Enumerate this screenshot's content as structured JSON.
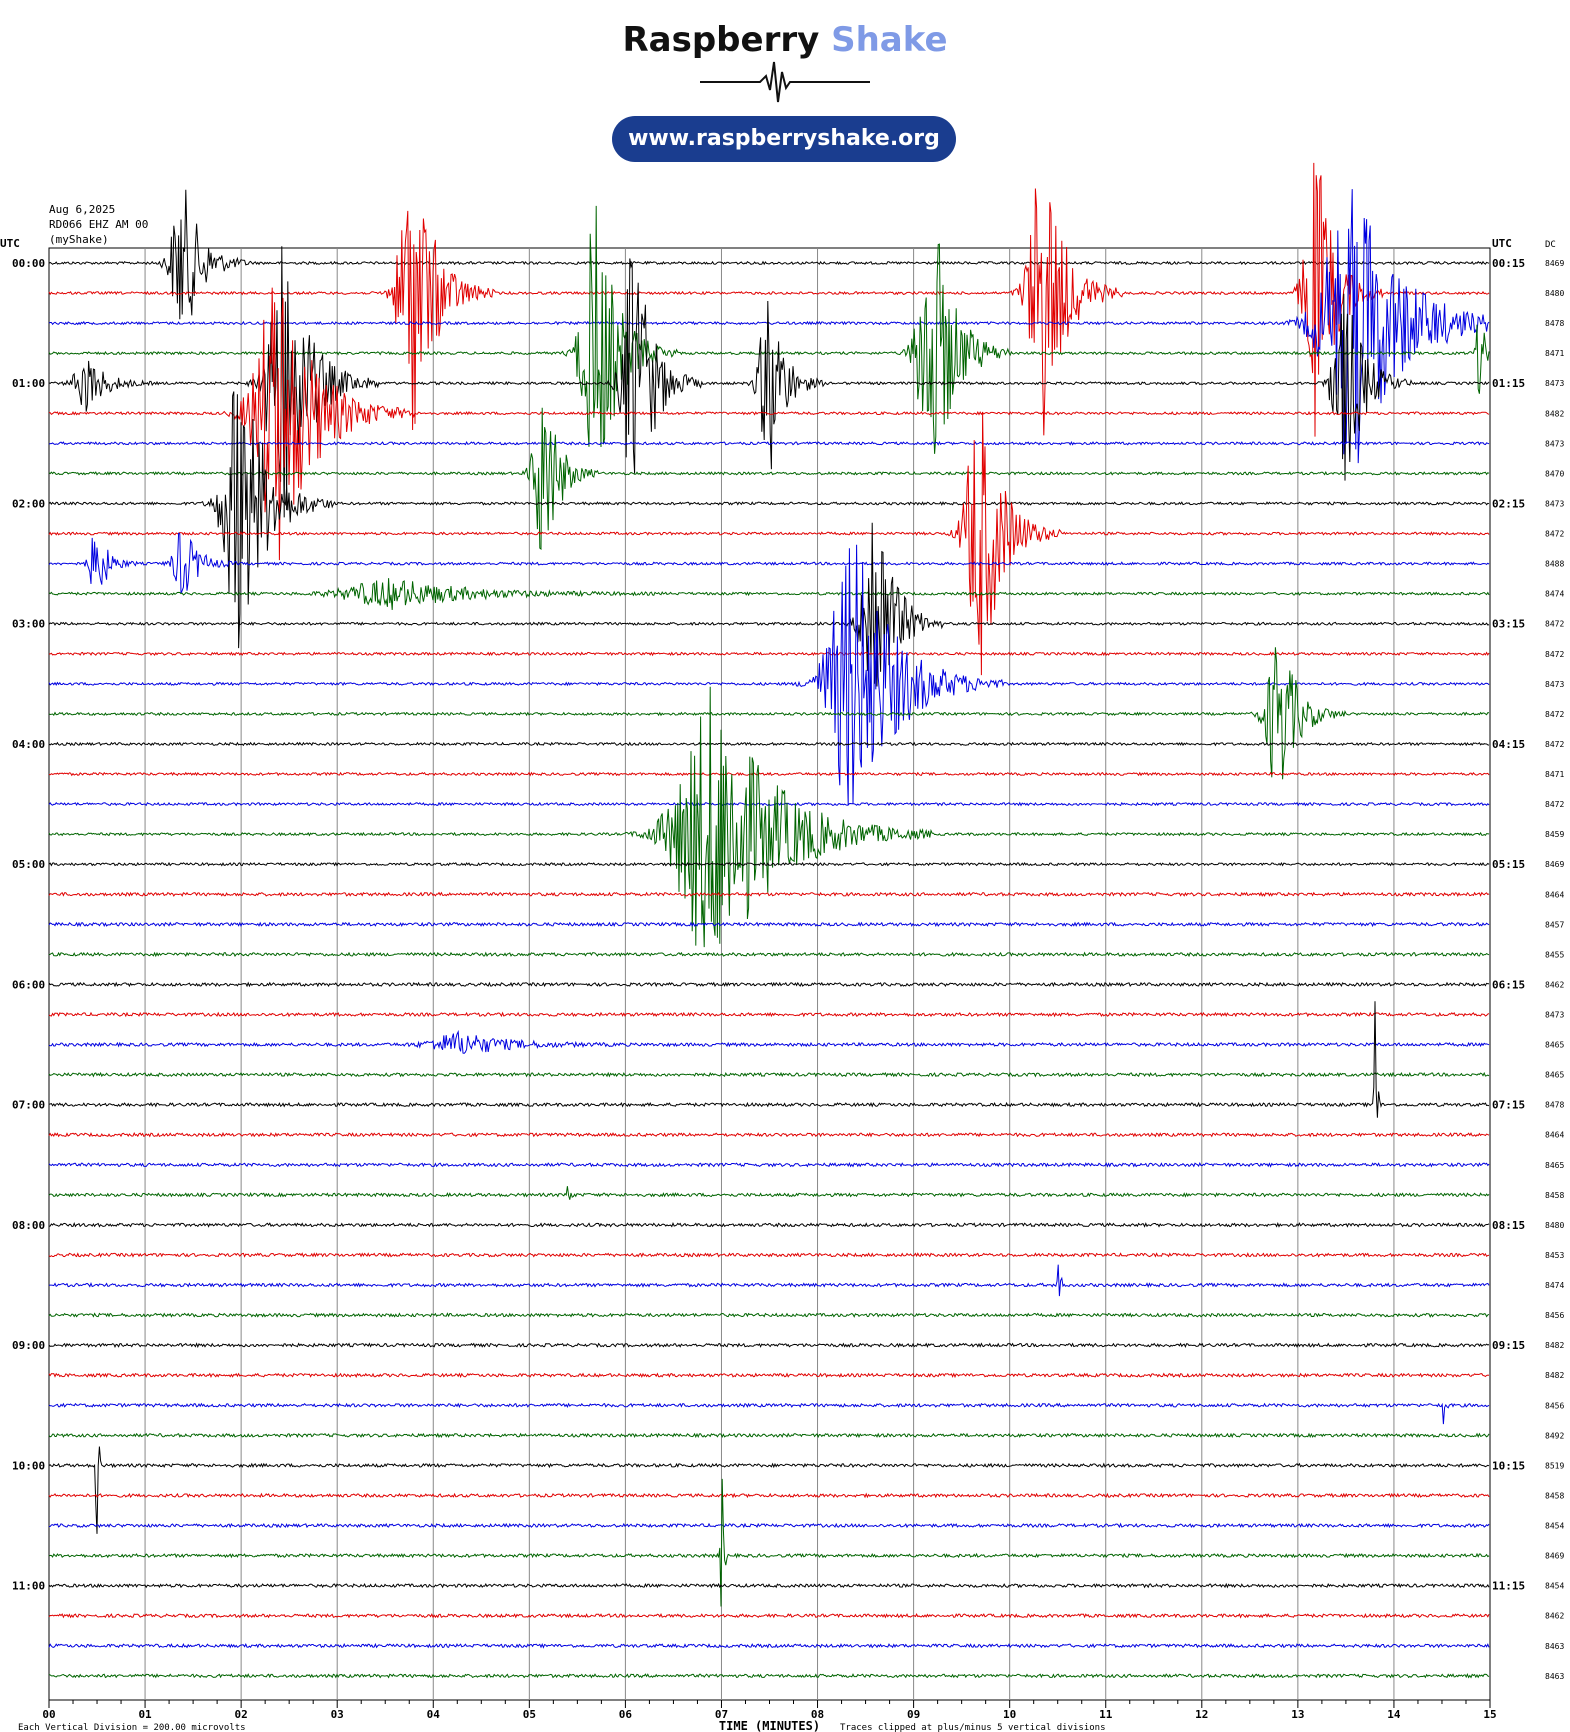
{
  "header": {
    "brand_main": "Raspberry",
    "brand_accent": "Shake",
    "url": "www.raspberryshake.org",
    "accent_color": "#7f9ae6",
    "pill_color": "#1a3d8f"
  },
  "meta": {
    "date": "Aug 6,2025",
    "station": "RD066 EHZ AM 00",
    "source": "(myShake)"
  },
  "chart_data": {
    "type": "helicorder",
    "left_label": "UTC",
    "right_label": "UTC",
    "dc_label": "DC",
    "xlabel": "TIME (MINUTES)",
    "xticks": [
      "00",
      "01",
      "02",
      "03",
      "04",
      "05",
      "06",
      "07",
      "08",
      "09",
      "10",
      "11",
      "12",
      "13",
      "14",
      "15"
    ],
    "xlim": [
      0,
      15
    ],
    "footer_left": "Each Vertical Division =  200.00 microvolts",
    "footer_right": "Traces clipped at plus/minus 5 vertical divisions",
    "trace_colors": [
      "#000000",
      "#e00000",
      "#0000e0",
      "#006400"
    ],
    "left_time_labels": [
      "00:00",
      "01:00",
      "02:00",
      "03:00",
      "04:00",
      "05:00",
      "06:00",
      "07:00",
      "08:00",
      "09:00",
      "10:00",
      "11:00"
    ],
    "right_time_labels": [
      "00:15",
      "01:15",
      "02:15",
      "03:15",
      "04:15",
      "05:15",
      "06:15",
      "07:15",
      "08:15",
      "09:15",
      "10:15",
      "11:15"
    ],
    "dc_values": [
      "8469",
      "8480",
      "8478",
      "8471",
      "8473",
      "8482",
      "8473",
      "8470",
      "8473",
      "8472",
      "8488",
      "8474",
      "8472",
      "8472",
      "8473",
      "8472",
      "8472",
      "8471",
      "8472",
      "8459",
      "8469",
      "8464",
      "8457",
      "8455",
      "8462",
      "8473",
      "8465",
      "8465",
      "8478",
      "8464",
      "8465",
      "8458",
      "8480",
      "8453",
      "8474",
      "8456",
      "8482",
      "8482",
      "8456",
      "8492",
      "8519",
      "8458",
      "8454",
      "8469",
      "8454",
      "8462",
      "8463",
      "8463"
    ],
    "events": [
      {
        "trace": 0,
        "minute": 1.4,
        "amplitude": 2.8,
        "duration": 0.5
      },
      {
        "trace": 1,
        "minute": 3.8,
        "amplitude": 5.0,
        "duration": 0.6
      },
      {
        "trace": 1,
        "minute": 10.35,
        "amplitude": 5.0,
        "duration": 0.6
      },
      {
        "trace": 1,
        "minute": 13.2,
        "amplitude": 5.0,
        "duration": 0.5
      },
      {
        "trace": 2,
        "minute": 13.6,
        "amplitude": 5.0,
        "duration": 1.3
      },
      {
        "trace": 3,
        "minute": 5.7,
        "amplitude": 5.0,
        "duration": 0.6
      },
      {
        "trace": 3,
        "minute": 9.2,
        "amplitude": 5.0,
        "duration": 0.6
      },
      {
        "trace": 3,
        "minute": 14.9,
        "amplitude": 1.5,
        "duration": 0.2
      },
      {
        "trace": 4,
        "minute": 0.4,
        "amplitude": 1.0,
        "duration": 0.5
      },
      {
        "trace": 4,
        "minute": 2.45,
        "amplitude": 5.0,
        "duration": 0.7
      },
      {
        "trace": 4,
        "minute": 6.1,
        "amplitude": 5.0,
        "duration": 0.5
      },
      {
        "trace": 4,
        "minute": 7.5,
        "amplitude": 3.5,
        "duration": 0.4
      },
      {
        "trace": 4,
        "minute": 13.5,
        "amplitude": 3.5,
        "duration": 0.5
      },
      {
        "trace": 5,
        "minute": 2.4,
        "amplitude": 5.0,
        "duration": 1.0
      },
      {
        "trace": 7,
        "minute": 5.15,
        "amplitude": 3.5,
        "duration": 0.4
      },
      {
        "trace": 8,
        "minute": 2.0,
        "amplitude": 5.0,
        "duration": 0.7
      },
      {
        "trace": 9,
        "minute": 9.7,
        "amplitude": 5.0,
        "duration": 0.6
      },
      {
        "trace": 10,
        "minute": 0.5,
        "amplitude": 1.3,
        "duration": 0.3
      },
      {
        "trace": 10,
        "minute": 1.4,
        "amplitude": 1.3,
        "duration": 0.4
      },
      {
        "trace": 11,
        "minute": 3.6,
        "amplitude": 0.5,
        "duration": 2.0
      },
      {
        "trace": 12,
        "minute": 8.6,
        "amplitude": 5.0,
        "duration": 0.5
      },
      {
        "trace": 14,
        "minute": 8.4,
        "amplitude": 5.0,
        "duration": 1.1
      },
      {
        "trace": 15,
        "minute": 12.8,
        "amplitude": 3.0,
        "duration": 0.5
      },
      {
        "trace": 19,
        "minute": 6.95,
        "amplitude": 5.0,
        "duration": 1.6
      },
      {
        "trace": 26,
        "minute": 4.3,
        "amplitude": 0.4,
        "duration": 1.2
      },
      {
        "trace": 28,
        "minute": 13.8,
        "amplitude": 5.0,
        "duration": 0.05
      },
      {
        "trace": 31,
        "minute": 5.4,
        "amplitude": 0.8,
        "duration": 0.05
      },
      {
        "trace": 34,
        "minute": 10.5,
        "amplitude": 2.0,
        "duration": 0.05
      },
      {
        "trace": 38,
        "minute": 14.5,
        "amplitude": 1.5,
        "duration": 0.05
      },
      {
        "trace": 40,
        "minute": 0.5,
        "amplitude": 3.8,
        "duration": 0.05
      },
      {
        "trace": 43,
        "minute": 7.0,
        "amplitude": 4.0,
        "duration": 0.05
      }
    ]
  }
}
